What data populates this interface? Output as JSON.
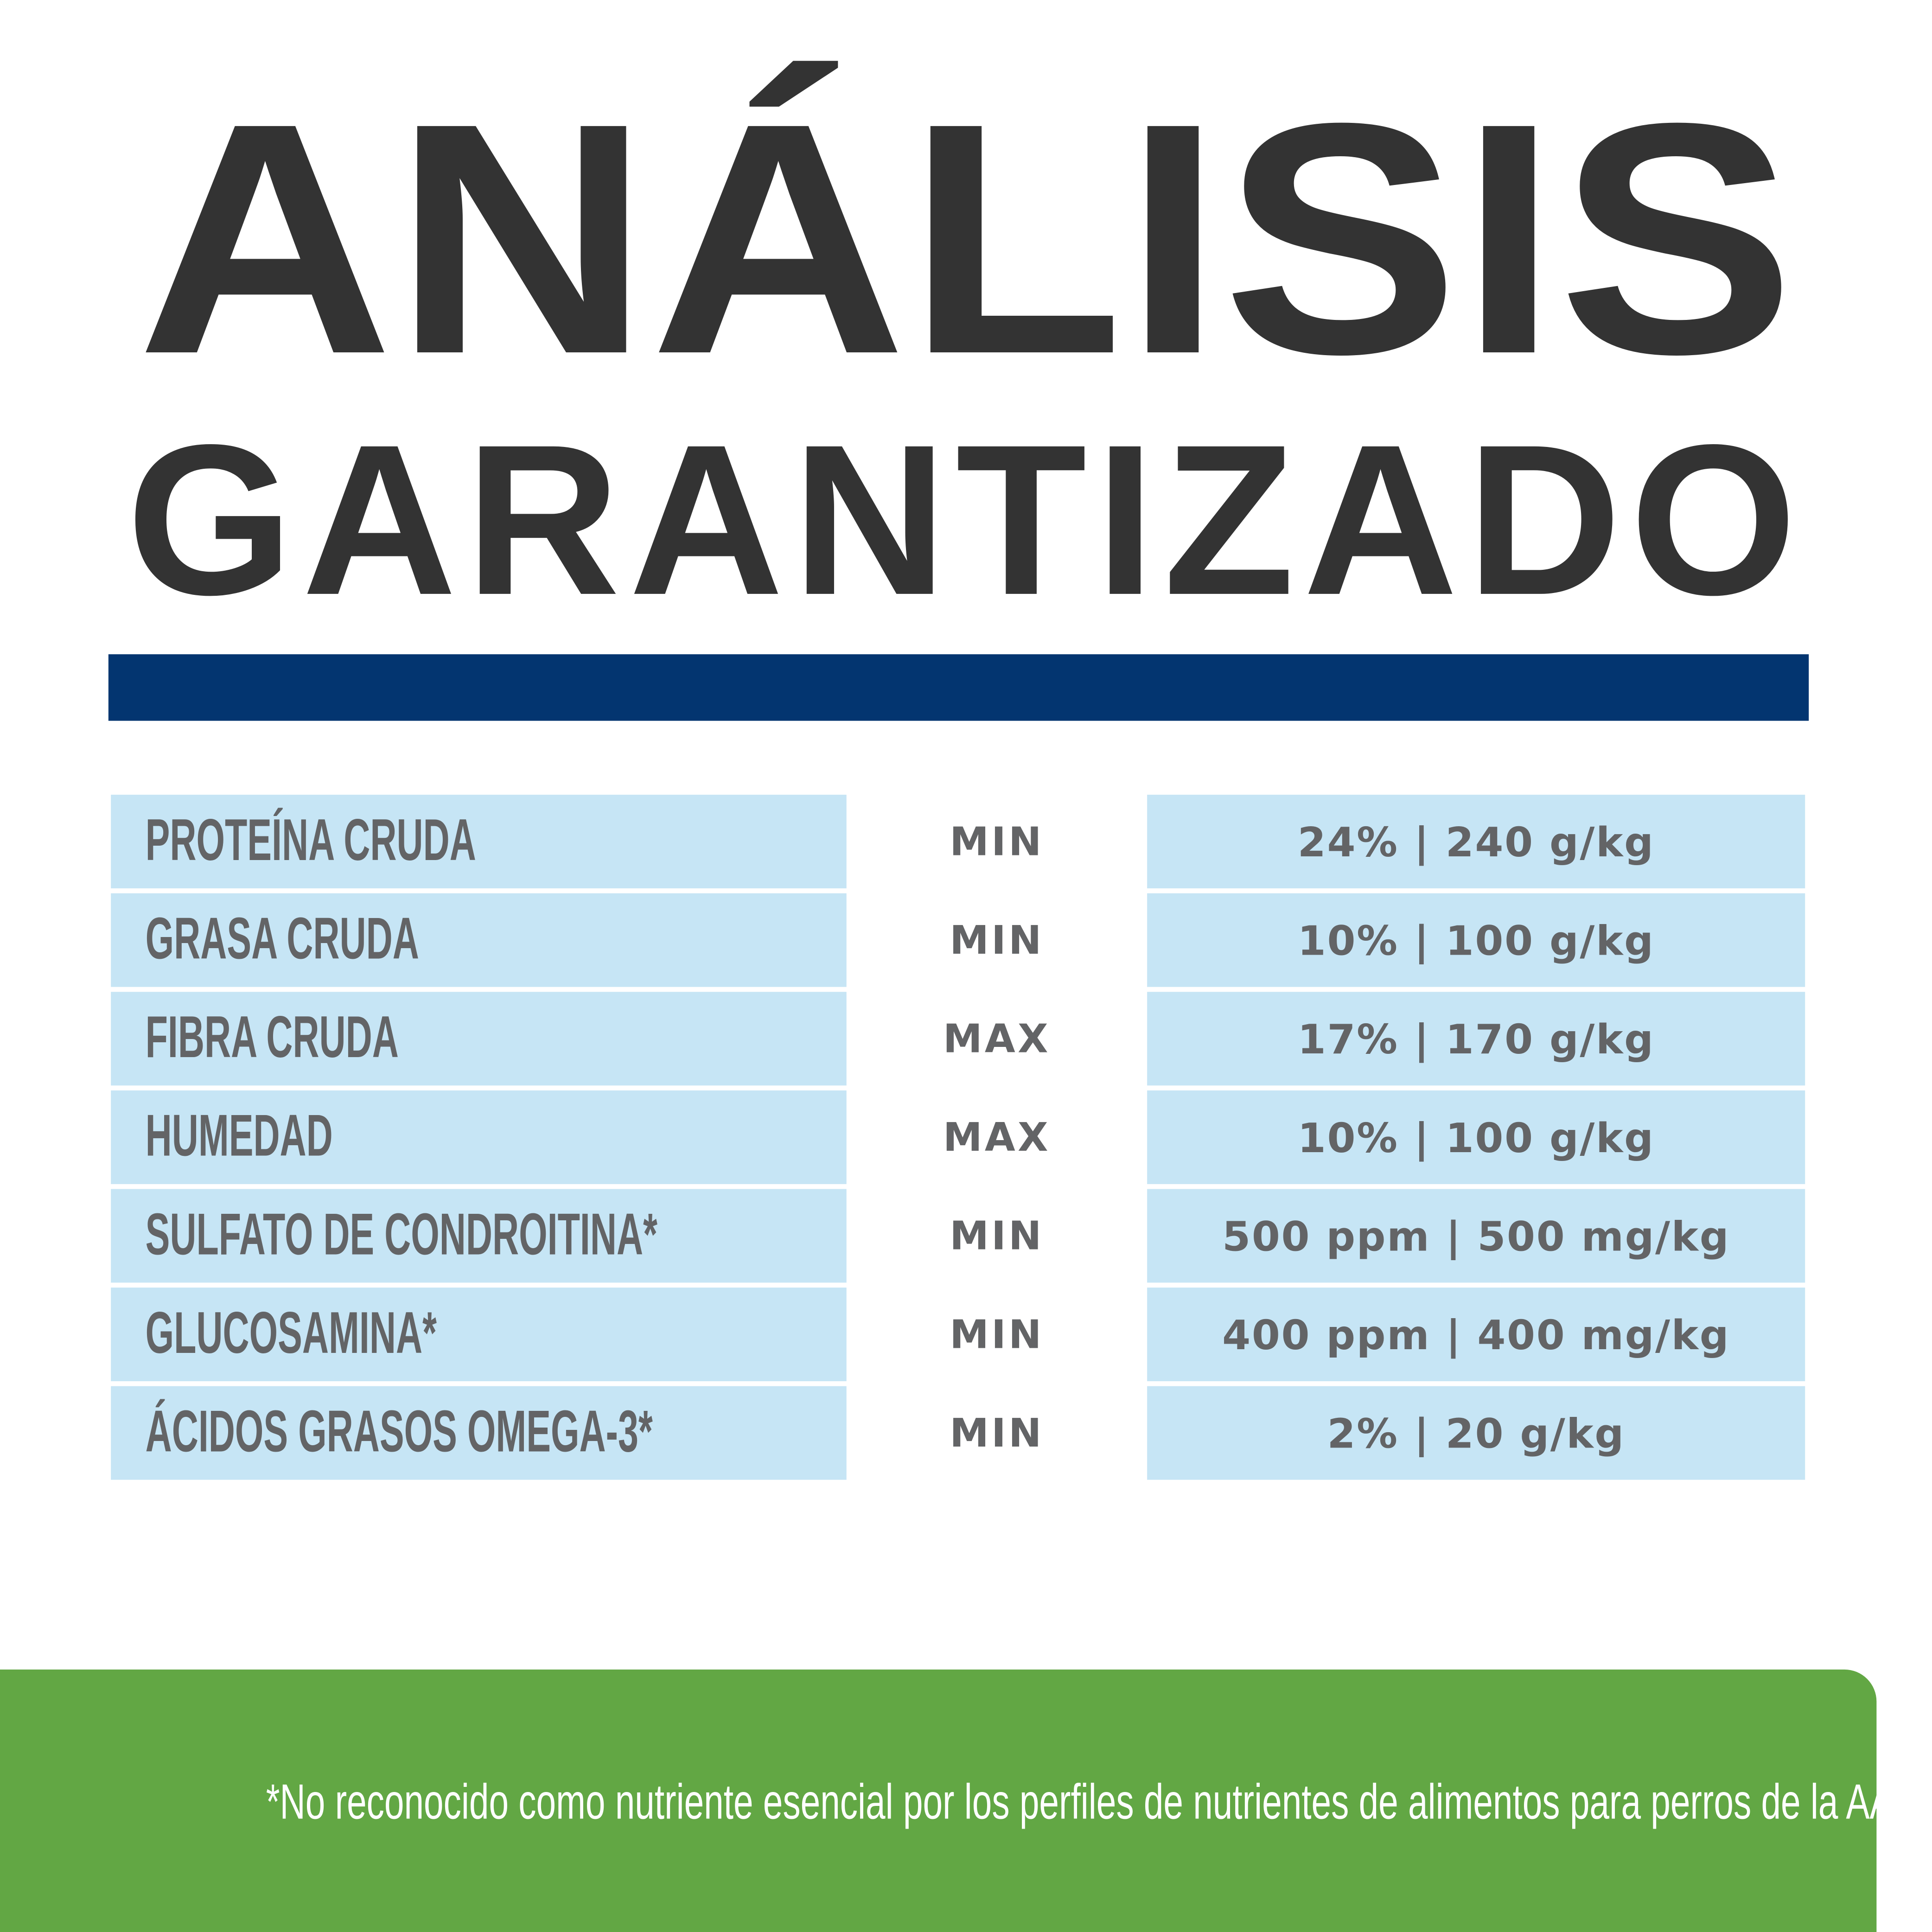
{
  "title": {
    "line1": "ANÁLISIS",
    "line2": "GARANTIZADO"
  },
  "colors": {
    "title": "#333333",
    "bar": "#033570",
    "cell": "#c6e5f5",
    "text": "#636466",
    "footer": "#62a744"
  },
  "rows": [
    {
      "label": "PROTEÍNA CRUDA",
      "kind": "MIN",
      "value": "24% | 240 g/kg"
    },
    {
      "label": "GRASA CRUDA",
      "kind": "MIN",
      "value": "10% | 100 g/kg"
    },
    {
      "label": "FIBRA CRUDA",
      "kind": "MAX",
      "value": "17% | 170 g/kg"
    },
    {
      "label": "HUMEDAD",
      "kind": "MAX",
      "value": "10% | 100 g/kg"
    },
    {
      "label": "SULFATO DE CONDROITINA*",
      "kind": "MIN",
      "value": "500 ppm | 500 mg/kg"
    },
    {
      "label": "GLUCOSAMINA*",
      "kind": "MIN",
      "value": "400 ppm | 400 mg/kg"
    },
    {
      "label": "ÁCIDOS GRASOS OMEGA-3*",
      "kind": "MIN",
      "value": "2% | 20 g/kg"
    }
  ],
  "footnote": "*No reconocido como nutriente esencial por los perfiles de nutrientes de alimentos para perros de la AAFCO."
}
